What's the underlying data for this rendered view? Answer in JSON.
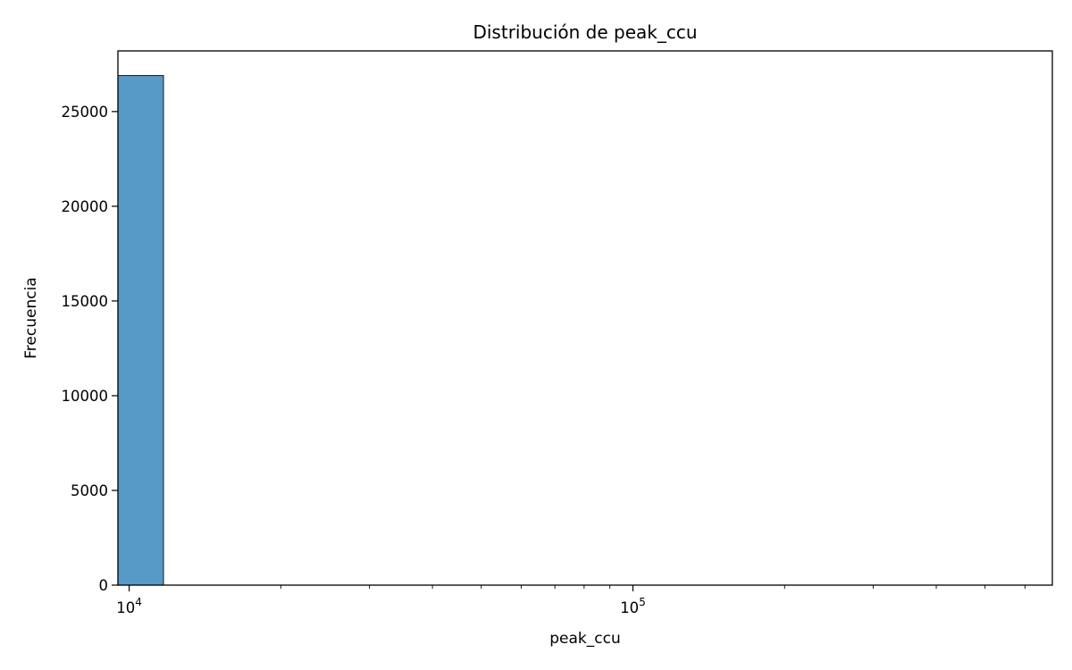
{
  "chart_data": {
    "type": "bar",
    "title": "Distribución de peak_ccu",
    "xlabel": "peak_ccu",
    "ylabel": "Frecuencia",
    "x_scale": "log",
    "xlim": [
      9500,
      680000
    ],
    "ylim": [
      0,
      28200
    ],
    "x_ticks": [
      {
        "value": 10000,
        "base": "10",
        "exp": "4"
      },
      {
        "value": 100000,
        "base": "10",
        "exp": "5"
      }
    ],
    "y_ticks": [
      {
        "value": 0,
        "label": "0"
      },
      {
        "value": 5000,
        "label": "5000"
      },
      {
        "value": 10000,
        "label": "10000"
      },
      {
        "value": 15000,
        "label": "15000"
      },
      {
        "value": 20000,
        "label": "20000"
      },
      {
        "value": 25000,
        "label": "25000"
      }
    ],
    "bins": [
      {
        "x0": 9500,
        "x1": 11700,
        "count": 26900
      }
    ],
    "bar_color": "#5799c7",
    "edge_color": "#1a1a1a",
    "grid": false,
    "legend": "none"
  }
}
